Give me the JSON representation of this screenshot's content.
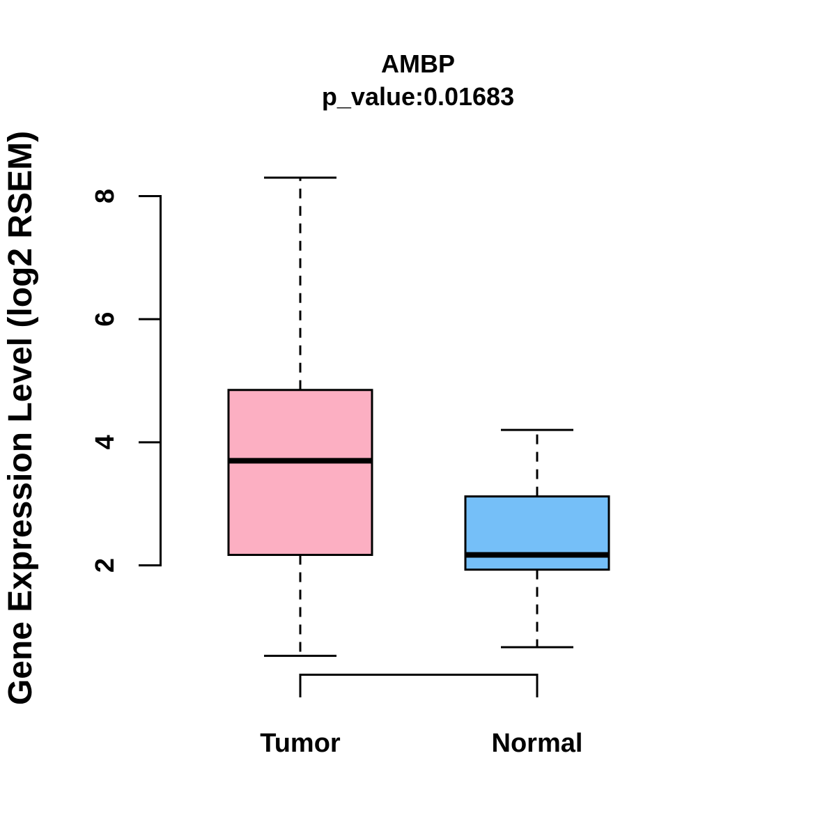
{
  "title": "AMBP",
  "subtitle": "p_value:0.01683",
  "colors": {
    "tumor_fill": "#FCAFC2",
    "normal_fill": "#75BFF8",
    "line": "#000000",
    "background": "#FFFFFF"
  },
  "chart_data": {
    "type": "boxplot",
    "title": "AMBP",
    "subtitle": "p_value:0.01683",
    "ylabel": "Gene Expression Level (log2 RSEM)",
    "xlabel": "",
    "categories": [
      "Tumor",
      "Normal"
    ],
    "y_ticks": [
      2,
      4,
      6,
      8
    ],
    "ylim": [
      0.3,
      8.5
    ],
    "grid": false,
    "legend": false,
    "series": [
      {
        "name": "Tumor",
        "low": 0.53,
        "q1": 2.17,
        "median": 3.7,
        "q3": 4.85,
        "high": 8.3,
        "fill": "#FCAFC2"
      },
      {
        "name": "Normal",
        "low": 0.67,
        "q1": 1.93,
        "median": 2.17,
        "q3": 3.12,
        "high": 4.2,
        "fill": "#75BFF8"
      }
    ]
  }
}
